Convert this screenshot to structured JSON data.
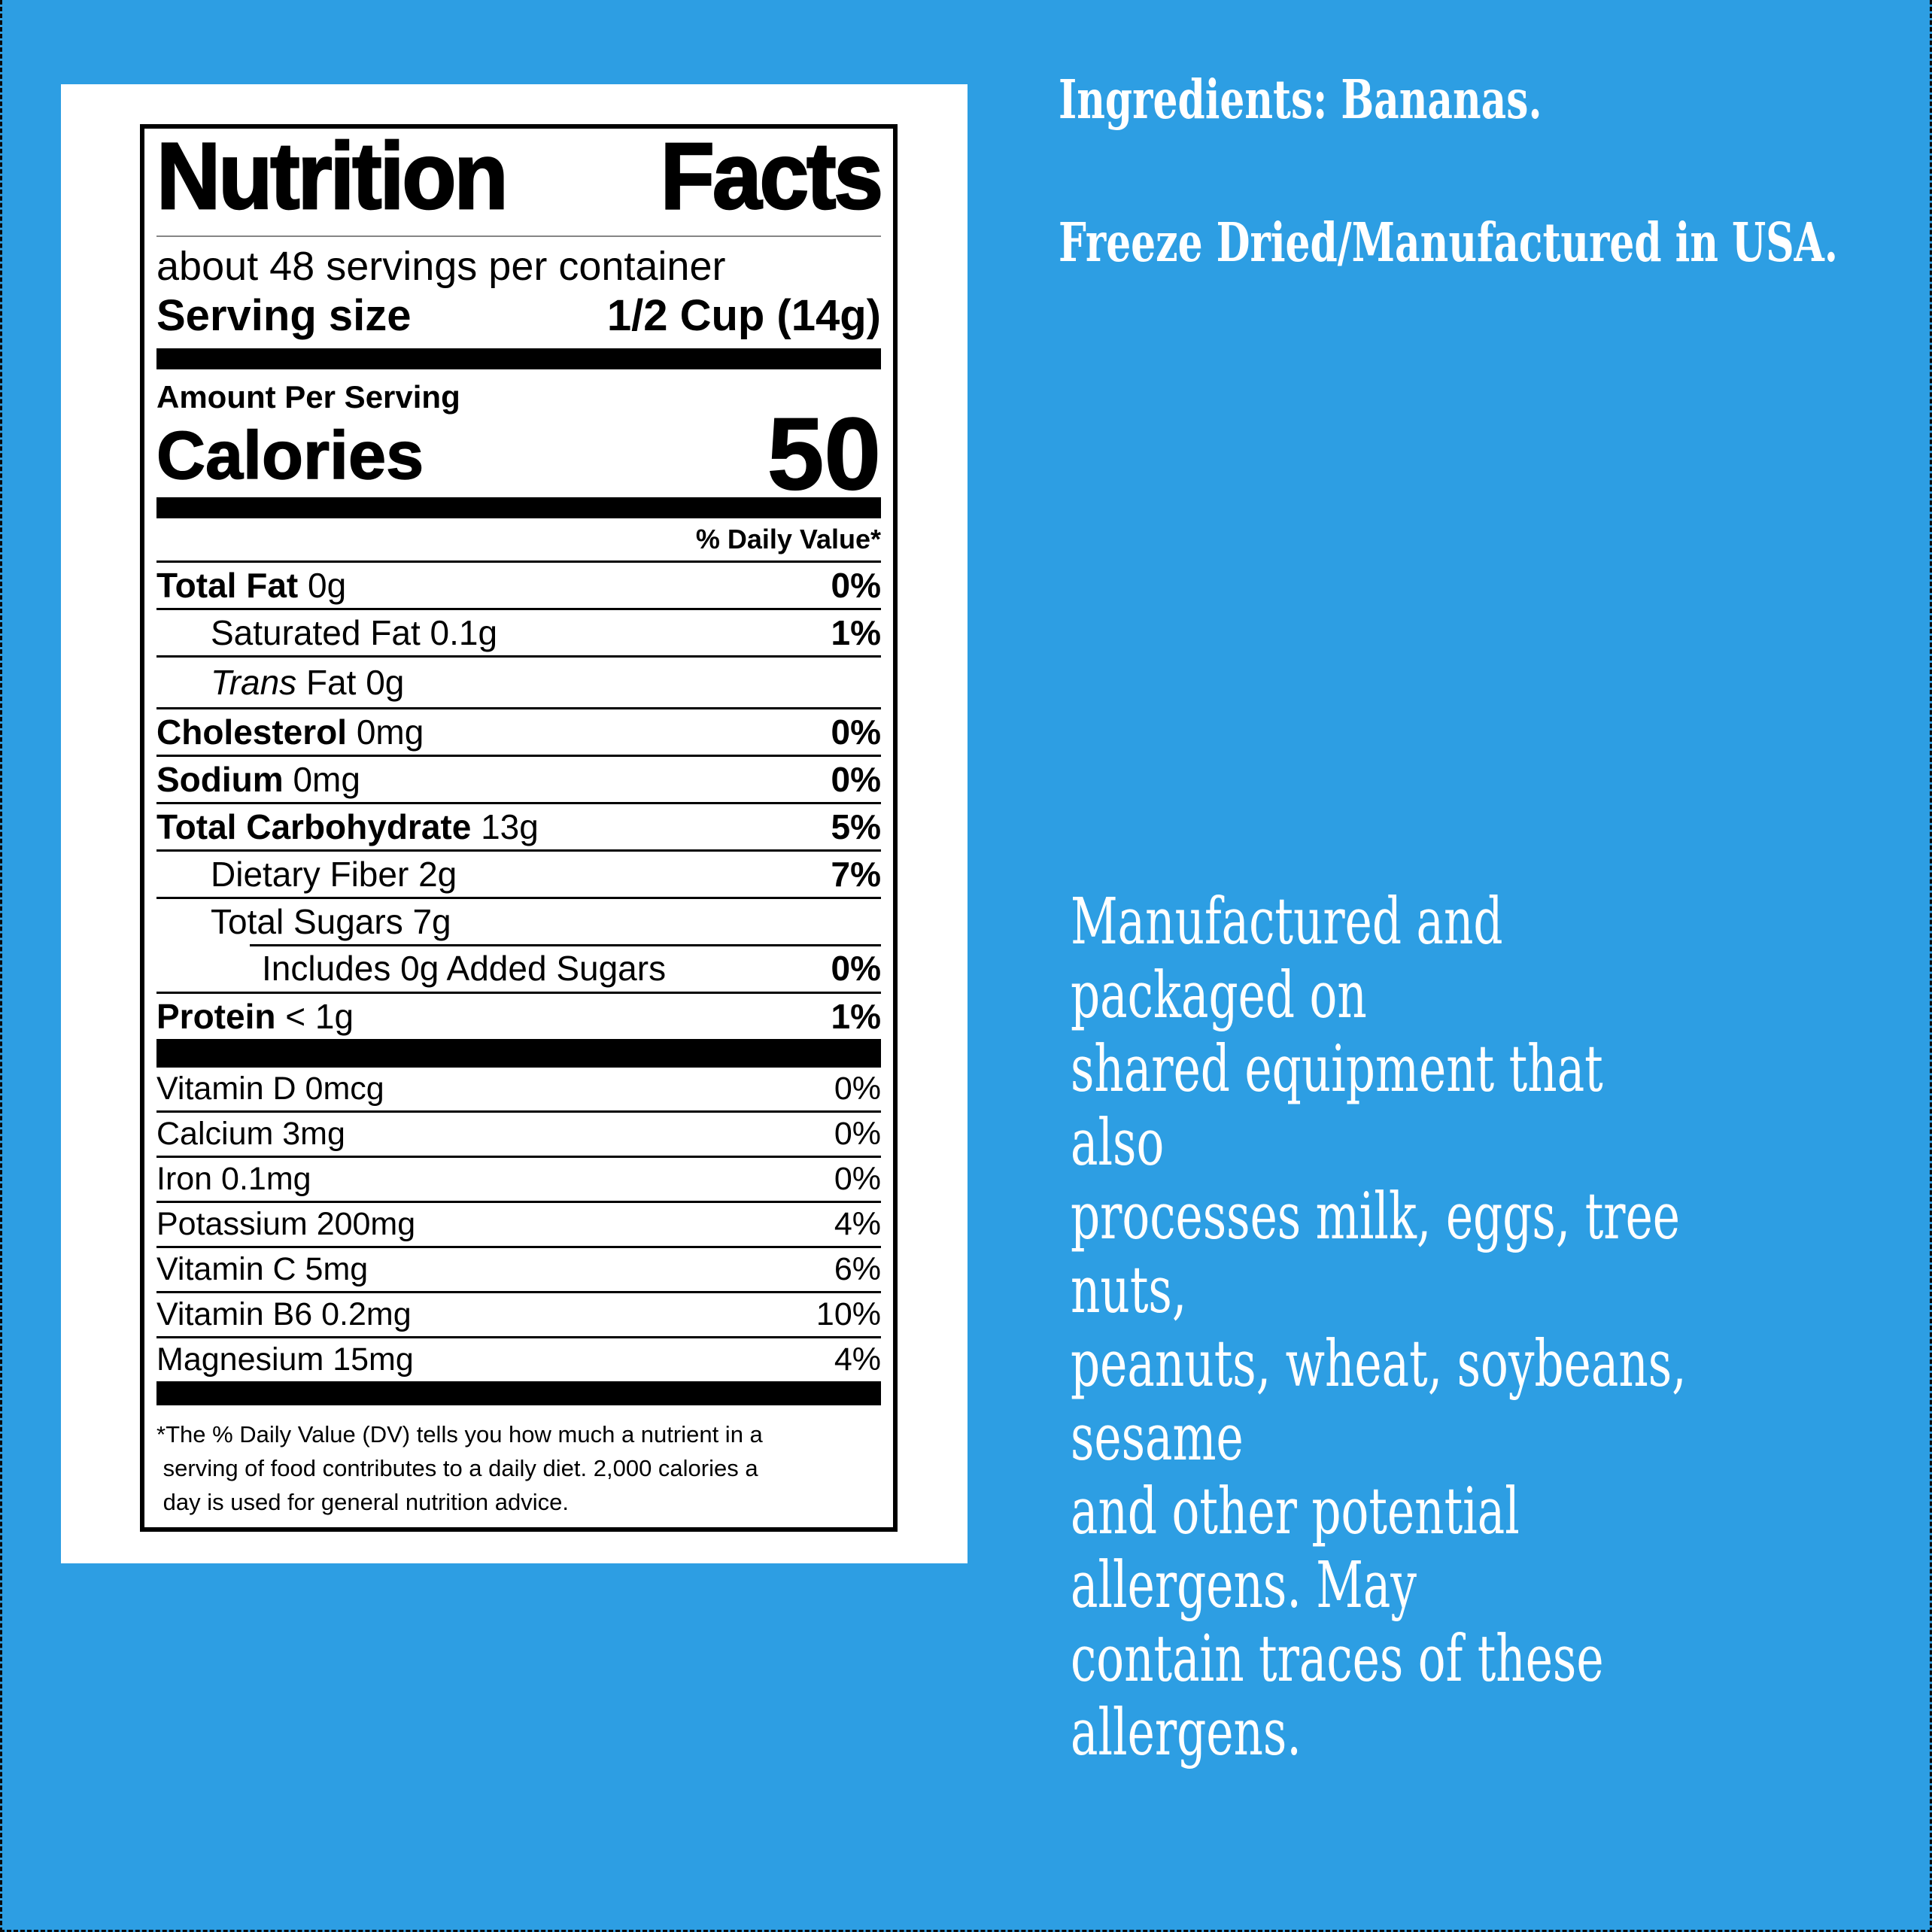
{
  "colors": {
    "background": "#2D9EE3",
    "card": "#FFFFFF",
    "label_text": "#000000",
    "text_on_blue": "#FFFFFF"
  },
  "nutrition_label": {
    "title": "Nutrition Facts",
    "servings_line": "about 48 servings per container",
    "serving_size": {
      "label": "Serving size",
      "value": "1/2 Cup (14g)"
    },
    "amount_per_serving": "Amount Per Serving",
    "calories": {
      "label": "Calories",
      "value": "50"
    },
    "daily_value_header": "% Daily Value*",
    "macro_rows": [
      {
        "bold": "Total Fat",
        "text": " 0g",
        "pct": "0%"
      },
      {
        "text": "Saturated Fat 0.1g",
        "pct": "1%"
      },
      {
        "italic": "Trans",
        "text": " Fat 0g",
        "pct": ""
      },
      {
        "bold": "Cholesterol",
        "text": " 0mg",
        "pct": "0%"
      },
      {
        "bold": "Sodium",
        "text": " 0mg",
        "pct": "0%"
      },
      {
        "bold": "Total Carbohydrate",
        "text": " 13g",
        "pct": "5%"
      },
      {
        "text": "Dietary Fiber 2g",
        "pct": "7%"
      },
      {
        "text": "Total Sugars 7g",
        "pct": ""
      },
      {
        "text": "Includes 0g Added Sugars",
        "pct": "0%"
      },
      {
        "bold": "Protein",
        "text": " < 1g",
        "pct": "1%"
      }
    ],
    "micro_rows": [
      {
        "text": "Vitamin D 0mcg",
        "pct": "0%"
      },
      {
        "text": "Calcium 3mg",
        "pct": "0%"
      },
      {
        "text": "Iron 0.1mg",
        "pct": "0%"
      },
      {
        "text": "Potassium 200mg",
        "pct": "4%"
      },
      {
        "text": "Vitamin C 5mg",
        "pct": "6%"
      },
      {
        "text": "Vitamin B6 0.2mg",
        "pct": "10%"
      },
      {
        "text": "Magnesium 15mg",
        "pct": "4%"
      }
    ],
    "footnote": "*The % Daily Value (DV) tells you how much a nutrient in a\n serving of food contributes to a daily diet. 2,000 calories a\n day is used for general nutrition advice."
  },
  "right_panel": {
    "ingredients": "Ingredients: Bananas.",
    "origin": "Freeze Dried/Manufactured in USA.",
    "allergen_notice": "Manufactured and packaged on\nshared equipment that also\nprocesses milk, eggs, tree nuts,\npeanuts, wheat, soybeans, sesame\nand other potential allergens. May\ncontain traces of these allergens."
  }
}
